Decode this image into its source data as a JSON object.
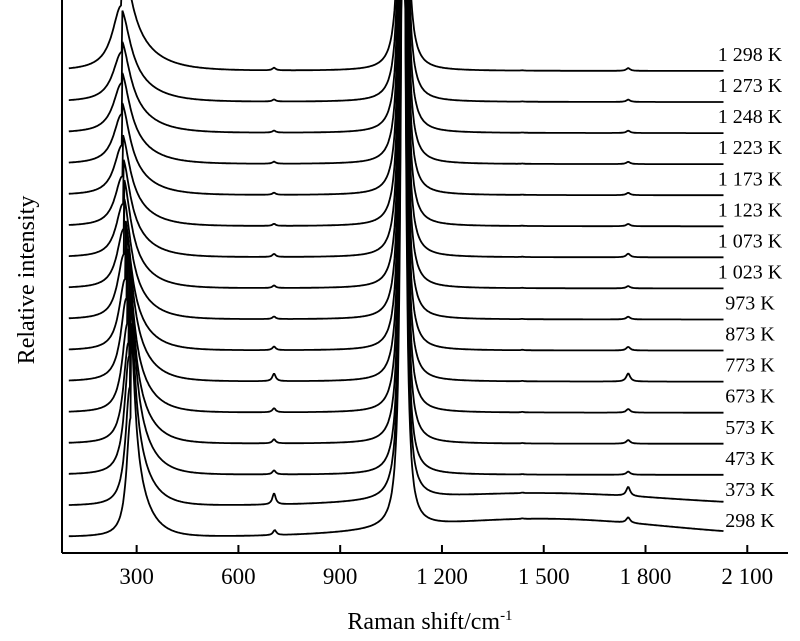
{
  "chart_data": {
    "type": "line",
    "title": "",
    "xlabel_main": "Raman shift/cm",
    "xlabel_sup": "-1",
    "ylabel": "Relative intensity",
    "xlim": [
      80,
      2220
    ],
    "x_ticks": [
      300,
      600,
      900,
      1200,
      1500,
      1800,
      2100
    ],
    "x_tick_labels": [
      "300",
      "600",
      "900",
      "1 200",
      "1 500",
      "1 800",
      "2 100"
    ],
    "y_ticks": false,
    "grid": false,
    "legend": "none",
    "line_color": "#000000",
    "peaks_cm": [
      260,
      700,
      1085,
      1415,
      1750
    ],
    "series": [
      {
        "label": "298 K",
        "temperature_K": 298,
        "peak_positions_cm": [
          282,
          707,
          1086,
          1437,
          1749
        ],
        "peak_relative_height": [
          1.0,
          0.1,
          1.0,
          0.04,
          0.12
        ]
      },
      {
        "label": "373 K",
        "temperature_K": 373,
        "peak_positions_cm": [
          280,
          705,
          1086,
          1437,
          1749
        ],
        "peak_relative_height": [
          1.0,
          0.22,
          1.0,
          0.04,
          0.2
        ]
      },
      {
        "label": "473 K",
        "temperature_K": 473,
        "peak_positions_cm": [
          278,
          705,
          1086,
          1437,
          1749
        ],
        "peak_relative_height": [
          1.0,
          0.08,
          1.0,
          0.03,
          0.07
        ]
      },
      {
        "label": "573 K",
        "temperature_K": 573,
        "peak_positions_cm": [
          276,
          705,
          1086,
          1437,
          1749
        ],
        "peak_relative_height": [
          0.85,
          0.08,
          1.0,
          0.03,
          0.08
        ]
      },
      {
        "label": "673 K",
        "temperature_K": 673,
        "peak_positions_cm": [
          273,
          705,
          1086,
          1437,
          1749
        ],
        "peak_relative_height": [
          0.75,
          0.08,
          1.0,
          0.03,
          0.08
        ]
      },
      {
        "label": "773 K",
        "temperature_K": 773,
        "peak_positions_cm": [
          270,
          705,
          1086,
          1437,
          1749
        ],
        "peak_relative_height": [
          0.7,
          0.15,
          1.0,
          0.03,
          0.18
        ]
      },
      {
        "label": "873 K",
        "temperature_K": 873,
        "peak_positions_cm": [
          266,
          705,
          1086,
          1437,
          1749
        ],
        "peak_relative_height": [
          0.6,
          0.07,
          1.0,
          0.03,
          0.08
        ]
      },
      {
        "label": "973 K",
        "temperature_K": 973,
        "peak_positions_cm": [
          263,
          705,
          1086,
          1437,
          1749
        ],
        "peak_relative_height": [
          0.55,
          0.05,
          1.0,
          0.02,
          0.06
        ]
      },
      {
        "label": "1 023 K",
        "temperature_K": 1023,
        "peak_positions_cm": [
          262,
          705,
          1086,
          1437,
          1749
        ],
        "peak_relative_height": [
          0.5,
          0.05,
          1.0,
          0.02,
          0.05
        ]
      },
      {
        "label": "1 073 K",
        "temperature_K": 1073,
        "peak_positions_cm": [
          260,
          705,
          1086,
          1437,
          1749
        ],
        "peak_relative_height": [
          0.45,
          0.06,
          1.0,
          0.02,
          0.08
        ]
      },
      {
        "label": "1 123 K",
        "temperature_K": 1123,
        "peak_positions_cm": [
          258,
          705,
          1086,
          1437,
          1749
        ],
        "peak_relative_height": [
          0.42,
          0.04,
          1.0,
          0.02,
          0.05
        ]
      },
      {
        "label": "1 173 K",
        "temperature_K": 1173,
        "peak_positions_cm": [
          257,
          705,
          1086,
          1437,
          1749
        ],
        "peak_relative_height": [
          0.42,
          0.04,
          1.0,
          0.02,
          0.05
        ]
      },
      {
        "label": "1 223 K",
        "temperature_K": 1223,
        "peak_positions_cm": [
          256,
          705,
          1086,
          1437,
          1749
        ],
        "peak_relative_height": [
          0.42,
          0.04,
          1.0,
          0.02,
          0.05
        ]
      },
      {
        "label": "1 248 K",
        "temperature_K": 1248,
        "peak_positions_cm": [
          256,
          705,
          1086,
          1437,
          1749
        ],
        "peak_relative_height": [
          0.42,
          0.04,
          1.0,
          0.02,
          0.05
        ]
      },
      {
        "label": "1 273 K",
        "temperature_K": 1273,
        "peak_positions_cm": [
          256,
          705,
          1086,
          1437,
          1749
        ],
        "peak_relative_height": [
          0.42,
          0.04,
          1.0,
          0.02,
          0.05
        ]
      },
      {
        "label": "1 298 K",
        "temperature_K": 1298,
        "peak_positions_cm": [
          255,
          705,
          1086,
          1437,
          1749
        ],
        "peak_relative_height": [
          0.55,
          0.05,
          1.0,
          0.02,
          0.06
        ]
      }
    ]
  }
}
